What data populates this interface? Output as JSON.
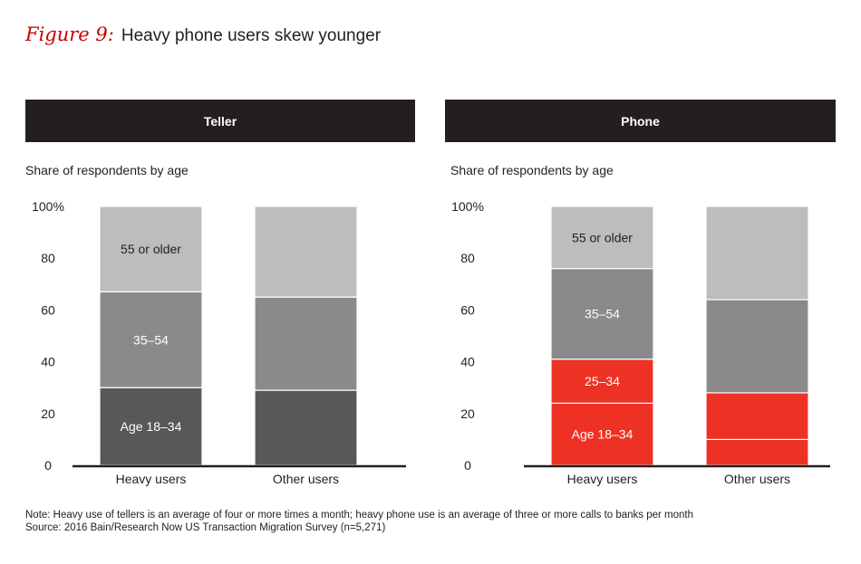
{
  "figure": {
    "label": "Figure 9:",
    "title": "Heavy phone users skew younger"
  },
  "panels": [
    {
      "header": "Teller",
      "subtitle": "Share of respondents by age"
    },
    {
      "header": "Phone",
      "subtitle": "Share of respondents by age"
    }
  ],
  "notes": {
    "note": "Note: Heavy use of tellers is an average of four or more times a month; heavy phone use is an average of three or more calls to banks per month",
    "source": "Source: 2016 Bain/Research Now US Transaction Migration Survey (n=5,271)"
  },
  "chart_data": [
    {
      "type": "bar",
      "stacked": true,
      "title": "Teller",
      "ylabel": "Share of respondents by age",
      "ylim": [
        0,
        100
      ],
      "yticks": [
        "0",
        "20",
        "40",
        "60",
        "80",
        "100%"
      ],
      "categories": [
        "Heavy users",
        "Other users"
      ],
      "series": [
        {
          "name": "Age 18–34",
          "values": [
            30,
            29
          ],
          "colors": [
            "#58585a",
            "#58585a"
          ],
          "labels": [
            "Age 18–34",
            ""
          ]
        },
        {
          "name": "35–54",
          "values": [
            37,
            36
          ],
          "colors": [
            "#8a8a8c",
            "#8a8a8c"
          ],
          "labels": [
            "35–54",
            ""
          ]
        },
        {
          "name": "55 or older",
          "values": [
            33,
            35
          ],
          "colors": [
            "#bdbdbf",
            "#bdbdbf"
          ],
          "labels": [
            "55 or older",
            ""
          ]
        }
      ]
    },
    {
      "type": "bar",
      "stacked": true,
      "title": "Phone",
      "ylabel": "Share of respondents by age",
      "ylim": [
        0,
        100
      ],
      "yticks": [
        "0",
        "20",
        "40",
        "60",
        "80",
        "100%"
      ],
      "categories": [
        "Heavy users",
        "Other users"
      ],
      "series": [
        {
          "name": "Age 18–34",
          "values": [
            24,
            10
          ],
          "colors": [
            "#ed3124",
            "#ed3124"
          ],
          "labels": [
            "Age 18–34",
            ""
          ]
        },
        {
          "name": "25–34",
          "values": [
            17,
            18
          ],
          "colors": [
            "#ed3124",
            "#ed3124"
          ],
          "labels": [
            "25–34",
            ""
          ]
        },
        {
          "name": "35–54",
          "values": [
            35,
            36
          ],
          "colors": [
            "#8a8a8c",
            "#8a8a8c"
          ],
          "labels": [
            "35–54",
            ""
          ]
        },
        {
          "name": "55 or older",
          "values": [
            24,
            36
          ],
          "colors": [
            "#bdbdbf",
            "#bdbdbf"
          ],
          "labels": [
            "55 or older",
            ""
          ]
        }
      ]
    }
  ]
}
